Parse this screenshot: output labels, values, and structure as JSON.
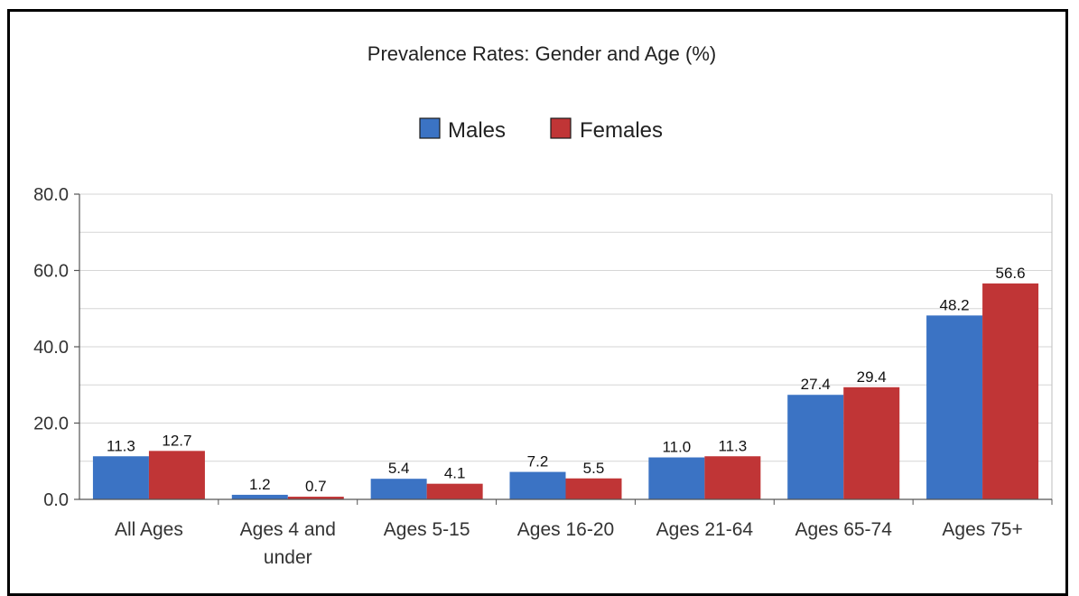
{
  "chart_data": {
    "type": "bar",
    "title": "Prevalence Rates: Gender and Age (%)",
    "categories": [
      [
        "All Ages"
      ],
      [
        "Ages 4 and",
        "under"
      ],
      [
        "Ages 5-15"
      ],
      [
        "Ages 16-20"
      ],
      [
        "Ages 21-64"
      ],
      [
        "Ages 65-74"
      ],
      [
        "Ages 75+"
      ]
    ],
    "series": [
      {
        "name": "Males",
        "color": "#3B73C4",
        "values": [
          11.3,
          1.2,
          5.4,
          7.2,
          11.0,
          27.4,
          48.2
        ]
      },
      {
        "name": "Females",
        "color": "#C03536",
        "values": [
          12.7,
          0.7,
          4.1,
          5.5,
          11.3,
          29.4,
          56.6
        ]
      }
    ],
    "ylim": [
      0,
      80
    ],
    "yticks": [
      0,
      20,
      40,
      60,
      80
    ],
    "ytick_labels": [
      "0.0",
      "20.0",
      "40.0",
      "60.0",
      "80.0"
    ],
    "grid": true,
    "legend_position": "top-center",
    "data_labels": [
      [
        "11.3",
        "1.2",
        "5.4",
        "7.2",
        "11.0",
        "27.4",
        "48.2"
      ],
      [
        "12.7",
        "0.7",
        "4.1",
        "5.5",
        "11.3",
        "29.4",
        "56.6"
      ]
    ]
  }
}
